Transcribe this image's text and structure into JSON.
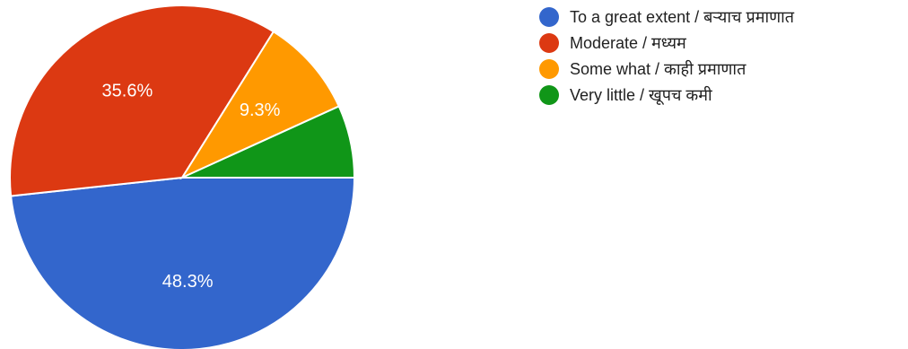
{
  "chart_data": {
    "type": "pie",
    "categories": [
      "To a great extent / बऱ्याच प्रमाणात",
      "Moderate / मध्यम",
      "Some what / काही प्रमाणात",
      "Very little / खूपच कमी"
    ],
    "values": [
      48.3,
      35.6,
      9.3,
      6.8
    ],
    "data_labels": [
      "48.3%",
      "35.6%",
      "9.3%",
      ""
    ],
    "colors": [
      "#3366cc",
      "#dc3912",
      "#ff9900",
      "#109618"
    ],
    "legend_position": "right",
    "title": ""
  }
}
